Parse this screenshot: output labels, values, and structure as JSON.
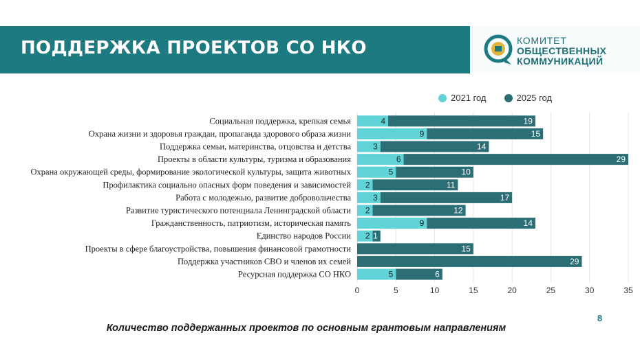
{
  "header": {
    "title": "ПОДДЕРЖКА ПРОЕКТОВ СО НКО",
    "logo_line1": "КОМИТЕТ",
    "logo_line2": "ОБЩЕСТВЕННЫХ",
    "logo_line3": "КОММУНИКАЦИЙ"
  },
  "footer": {
    "caption": "Количество поддержанных проектов по основным грантовым направлениям",
    "page_number": "8"
  },
  "colors": {
    "header": "#1d7a80",
    "series_2021": "#5fd3d8",
    "series_2025": "#2c6e76"
  },
  "chart_data": {
    "type": "bar",
    "orientation": "horizontal",
    "stacked": true,
    "categories": [
      "Социальная поддержка, крепкая семья",
      "Охрана жизни и здоровья граждан, пропаганда здорового образа жизни",
      "Поддержка семьи, материнства, отцовства и детства",
      "Проекты в области культуры, туризма и образования",
      "Охрана окружающей среды, формирование экологической культуры, защита животных",
      "Профилактика социально опасных форм поведения и зависимостей",
      "Работа с молодежью, развитие добровольчества",
      "Развитие туристического потенциала Ленинградской области",
      "Гражданственность, патриотизм, историческая память",
      "Единство народов России",
      "Проекты в сфере благоустройства, повышения финансовой грамотности",
      "Поддержка участников СВО и членов их семей",
      "Ресурсная поддержка СО НКО"
    ],
    "series": [
      {
        "name": "2021 год",
        "color": "#5fd3d8",
        "label_color": "#222222",
        "values": [
          4,
          9,
          3,
          6,
          5,
          2,
          3,
          2,
          9,
          2,
          0,
          0,
          5
        ]
      },
      {
        "name": "2025 год",
        "color": "#2c6e76",
        "label_color": "#ffffff",
        "values": [
          19,
          15,
          14,
          29,
          10,
          11,
          17,
          12,
          14,
          1,
          15,
          29,
          6
        ]
      }
    ],
    "xlim": [
      0,
      35
    ],
    "xticks": [
      0,
      5,
      10,
      15,
      20,
      25,
      30,
      35
    ],
    "legend_position": "top-right",
    "grid": true
  }
}
